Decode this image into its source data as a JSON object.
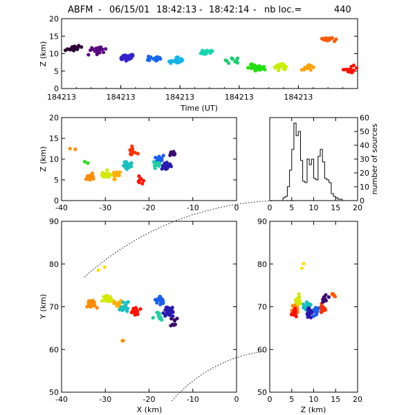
{
  "title": {
    "station": "ABFM",
    "sep1": "-",
    "date": "06/15/01",
    "t_start": "18:42:13",
    "sep2": "-",
    "t_end": "18:42:14",
    "sep3": "-",
    "count_label": "nb loc.=",
    "count": "440"
  },
  "chart_data": [
    {
      "id": "time-height",
      "type": "scatter",
      "xlabel": "Time (UT)",
      "ylabel": "Z (km)",
      "xticks": [
        "184213",
        "184213",
        "184213",
        "184213",
        "184213",
        "184213"
      ],
      "yticks": [
        0,
        5,
        10,
        15,
        20
      ],
      "ylim": [
        0,
        20
      ],
      "color_scale": "rainbow by time (purple → red)",
      "clusters": [
        {
          "t_frac": 0.04,
          "z": 11.5,
          "color": "#2a0033",
          "n": 22
        },
        {
          "t_frac": 0.12,
          "z": 10.8,
          "color": "#5a0a80",
          "n": 26
        },
        {
          "t_frac": 0.22,
          "z": 9.0,
          "color": "#3322cc",
          "n": 26
        },
        {
          "t_frac": 0.31,
          "z": 8.5,
          "color": "#1a66ee",
          "n": 26
        },
        {
          "t_frac": 0.39,
          "z": 8.0,
          "color": "#14b4e6",
          "n": 22
        },
        {
          "t_frac": 0.49,
          "z": 10.5,
          "color": "#16d6b0",
          "n": 14
        },
        {
          "t_frac": 0.58,
          "z": 8.0,
          "color": "#18d070",
          "n": 10
        },
        {
          "t_frac": 0.66,
          "z": 6.0,
          "color": "#22e010",
          "n": 32
        },
        {
          "t_frac": 0.74,
          "z": 6.2,
          "color": "#c4f000",
          "n": 20
        },
        {
          "t_frac": 0.83,
          "z": 6.0,
          "color": "#ffa000",
          "n": 18
        },
        {
          "t_frac": 0.9,
          "z": 14.0,
          "color": "#ff5a00",
          "n": 18
        },
        {
          "t_frac": 0.98,
          "z": 5.5,
          "color": "#ff1000",
          "n": 14
        }
      ]
    },
    {
      "id": "xz-projection",
      "type": "scatter",
      "ylabel": "Z (km)",
      "xlim": [
        -40,
        0
      ],
      "ylim": [
        0,
        20
      ],
      "xticks": [
        -40,
        -30,
        -20,
        -10,
        0
      ],
      "yticks": [
        0,
        5,
        10,
        15,
        20
      ],
      "clusters": [
        {
          "x": -33.5,
          "z": 5.6,
          "color": "#ff8c00",
          "n": 24
        },
        {
          "x": -30.0,
          "z": 6.2,
          "color": "#d4e800",
          "n": 22
        },
        {
          "x": -27.5,
          "z": 6.0,
          "color": "#ffb000",
          "n": 14
        },
        {
          "x": -25.0,
          "z": 8.5,
          "color": "#18c0c0",
          "n": 22
        },
        {
          "x": -23.5,
          "z": 12.0,
          "color": "#ff3000",
          "n": 12
        },
        {
          "x": -22.5,
          "z": 5.0,
          "color": "#ff1000",
          "n": 8
        },
        {
          "x": -17.5,
          "z": 10.0,
          "color": "#1a60ee",
          "n": 22
        },
        {
          "x": -16.0,
          "z": 8.0,
          "color": "#2a1ab0",
          "n": 22
        },
        {
          "x": -18.5,
          "z": 8.5,
          "color": "#20d0a0",
          "n": 10
        },
        {
          "x": -14.5,
          "z": 11.5,
          "color": "#3a0a70",
          "n": 10
        },
        {
          "x": -37.5,
          "z": 12.5,
          "color": "#ff8c00",
          "n": 2
        },
        {
          "x": -34.5,
          "z": 9.0,
          "color": "#22e010",
          "n": 2
        }
      ]
    },
    {
      "id": "height-histogram",
      "type": "bar",
      "xlabel": "",
      "ylabel": "number of sources",
      "xlim": [
        0,
        20
      ],
      "ylim": [
        0,
        60
      ],
      "xticks": [
        0,
        5,
        10,
        15,
        20
      ],
      "yticks": [
        0,
        10,
        20,
        30,
        40,
        50,
        60
      ],
      "bin_width": 0.5,
      "bin_start": 3.0,
      "values": [
        2,
        3,
        10,
        22,
        37,
        56,
        47,
        50,
        29,
        14,
        13,
        30,
        26,
        30,
        16,
        15,
        32,
        37,
        28,
        16,
        15,
        13,
        5,
        3,
        2,
        1,
        1,
        0
      ]
    },
    {
      "id": "plan-view",
      "type": "scatter",
      "xlabel": "X (km)",
      "ylabel": "Y (km)",
      "xlim": [
        -40,
        0
      ],
      "ylim": [
        50,
        90
      ],
      "xticks": [
        -40,
        -30,
        -20,
        -10,
        0
      ],
      "yticks": [
        50,
        60,
        70,
        80,
        90
      ],
      "range_rings": "dotted arcs (upper and lower)",
      "clusters": [
        {
          "x": -33.0,
          "y": 70.5,
          "color": "#ff8c00",
          "n": 24
        },
        {
          "x": -29.5,
          "y": 72.0,
          "color": "#d4e800",
          "n": 22
        },
        {
          "x": -27.0,
          "y": 70.5,
          "color": "#ffb000",
          "n": 14
        },
        {
          "x": -25.5,
          "y": 70.0,
          "color": "#18c0c0",
          "n": 18
        },
        {
          "x": -23.0,
          "y": 69.0,
          "color": "#ff1000",
          "n": 18
        },
        {
          "x": -17.5,
          "y": 71.5,
          "color": "#1a60ee",
          "n": 22
        },
        {
          "x": -15.5,
          "y": 69.0,
          "color": "#2a1ab0",
          "n": 22
        },
        {
          "x": -18.0,
          "y": 68.0,
          "color": "#20d0a0",
          "n": 10
        },
        {
          "x": -14.5,
          "y": 66.0,
          "color": "#3a0a70",
          "n": 8
        },
        {
          "x": -31.5,
          "y": 79.0,
          "color": "#ffe000",
          "n": 2
        },
        {
          "x": -26.5,
          "y": 62.5,
          "color": "#ff8c00",
          "n": 2
        }
      ]
    },
    {
      "id": "yz-projection",
      "type": "scatter",
      "xlabel": "Z (km)",
      "xlim": [
        0,
        20
      ],
      "ylim": [
        50,
        90
      ],
      "xticks": [
        0,
        5,
        10,
        15,
        20
      ],
      "yticks": [
        50,
        60,
        70,
        80,
        90
      ],
      "clusters": [
        {
          "z": 5.8,
          "y": 69.5,
          "color": "#ff8c00",
          "n": 26
        },
        {
          "z": 6.5,
          "y": 71.5,
          "color": "#d4e800",
          "n": 18
        },
        {
          "z": 5.6,
          "y": 68.5,
          "color": "#ff1000",
          "n": 14
        },
        {
          "z": 8.5,
          "y": 70.0,
          "color": "#18c0c0",
          "n": 22
        },
        {
          "z": 10.5,
          "y": 69.0,
          "color": "#1a60ee",
          "n": 22
        },
        {
          "z": 9.0,
          "y": 68.5,
          "color": "#2a1ab0",
          "n": 20
        },
        {
          "z": 12.0,
          "y": 69.5,
          "color": "#ff3000",
          "n": 14
        },
        {
          "z": 12.5,
          "y": 72.0,
          "color": "#3a0a70",
          "n": 8
        },
        {
          "z": 14.5,
          "y": 73.0,
          "color": "#ff5a00",
          "n": 6
        },
        {
          "z": 7.5,
          "y": 79.0,
          "color": "#ffe000",
          "n": 2
        }
      ]
    }
  ]
}
